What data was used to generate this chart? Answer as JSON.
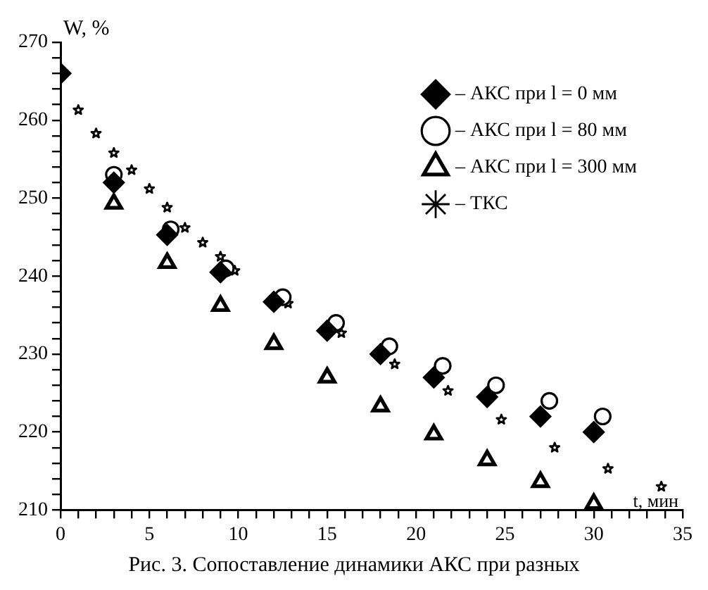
{
  "chart_data": {
    "type": "scatter",
    "xlabel": "t, мин",
    "ylabel": "W, %",
    "annotations": [
      "Рис. 3. Сопоставление динамики АКС при разных"
    ],
    "xlim": [
      0,
      35
    ],
    "ylim": [
      210,
      270
    ],
    "xticks": [
      0,
      {
        "value": 1,
        "label": null
      },
      {
        "value": 2,
        "label": null
      },
      {
        "value": 3,
        "label": null
      },
      {
        "value": 4,
        "label": null
      },
      5,
      {
        "value": 6,
        "label": null
      },
      {
        "value": 7,
        "label": null
      },
      {
        "value": 8,
        "label": null
      },
      {
        "value": 9,
        "label": null
      },
      10,
      {
        "value": 11,
        "label": null
      },
      {
        "value": 12,
        "label": null
      },
      {
        "value": 13,
        "label": null
      },
      {
        "value": 14,
        "label": null
      },
      15,
      {
        "value": 16,
        "label": null
      },
      {
        "value": 17,
        "label": null
      },
      {
        "value": 18,
        "label": null
      },
      {
        "value": 19,
        "label": null
      },
      20,
      {
        "value": 21,
        "label": null
      },
      {
        "value": 22,
        "label": null
      },
      {
        "value": 23,
        "label": null
      },
      {
        "value": 24,
        "label": null
      },
      25,
      {
        "value": 26,
        "label": null
      },
      {
        "value": 27,
        "label": null
      },
      {
        "value": 28,
        "label": null
      },
      {
        "value": 29,
        "label": null
      },
      30,
      {
        "value": 31,
        "label": null
      },
      {
        "value": 32,
        "label": null
      },
      {
        "value": 33,
        "label": null
      },
      {
        "value": 34,
        "label": null
      },
      35
    ],
    "yticks": [
      210,
      {
        "value": 212,
        "label": null
      },
      {
        "value": 214,
        "label": null
      },
      {
        "value": 216,
        "label": null
      },
      {
        "value": 218,
        "label": null
      },
      220,
      {
        "value": 222,
        "label": null
      },
      {
        "value": 224,
        "label": null
      },
      {
        "value": 226,
        "label": null
      },
      {
        "value": 228,
        "label": null
      },
      230,
      {
        "value": 232,
        "label": null
      },
      {
        "value": 234,
        "label": null
      },
      {
        "value": 236,
        "label": null
      },
      {
        "value": 238,
        "label": null
      },
      240,
      {
        "value": 242,
        "label": null
      },
      {
        "value": 244,
        "label": null
      },
      {
        "value": 246,
        "label": null
      },
      {
        "value": 248,
        "label": null
      },
      250,
      {
        "value": 252,
        "label": null
      },
      {
        "value": 254,
        "label": null
      },
      {
        "value": 256,
        "label": null
      },
      {
        "value": 258,
        "label": null
      },
      260,
      {
        "value": 262,
        "label": null
      },
      {
        "value": 264,
        "label": null
      },
      {
        "value": 266,
        "label": null
      },
      {
        "value": 268,
        "label": null
      },
      270
    ],
    "grid": false,
    "legend": "top right",
    "series": [
      {
        "name": "– АКС при l = 0 мм",
        "color": "#000000",
        "marker": "diamond",
        "x": [
          0,
          3,
          6,
          9,
          12,
          15,
          18,
          21,
          24,
          27,
          30
        ],
        "values": [
          266,
          252,
          245.3,
          240.5,
          236.7,
          233,
          230,
          227,
          224.5,
          222,
          220
        ]
      },
      {
        "name": "– АКС при l = 80 мм",
        "color": "#000000",
        "marker": "circle",
        "x": [
          3,
          6.2,
          9.3,
          12.5,
          15.5,
          18.5,
          21.5,
          24.5,
          27.5,
          30.5
        ],
        "values": [
          253,
          246,
          241,
          237.3,
          234,
          231,
          228.5,
          226,
          224,
          222
        ]
      },
      {
        "name": "– АКС при l = 300 мм",
        "color": "#000000",
        "marker": "triangle",
        "x": [
          3,
          6,
          9,
          12,
          15,
          18,
          21,
          24,
          27,
          30
        ],
        "values": [
          249.3,
          241.7,
          236.2,
          231.3,
          227,
          223.3,
          219.7,
          216.4,
          213.6,
          210.8
        ]
      },
      {
        "name": "– ТКС",
        "color": "#000000",
        "marker": "star",
        "x": [
          1,
          2,
          3,
          4,
          5,
          6,
          7,
          8,
          9,
          9.8,
          12.8,
          15.8,
          18.8,
          21.8,
          24.8,
          27.8,
          30.8,
          33.8
        ],
        "values": [
          261.3,
          258.3,
          255.8,
          253.6,
          251.2,
          248.8,
          246.2,
          244.3,
          242.5,
          240.7,
          236.5,
          232.7,
          228.7,
          225.3,
          221.6,
          218,
          215.3,
          213
        ]
      }
    ]
  }
}
